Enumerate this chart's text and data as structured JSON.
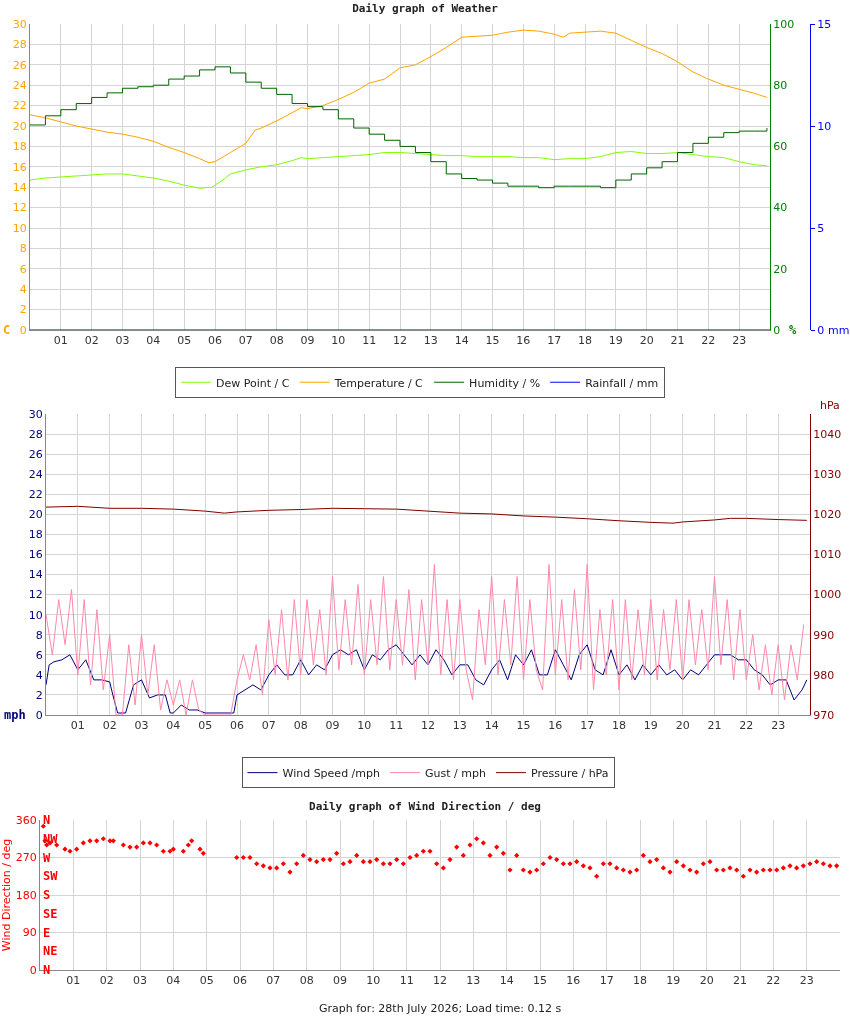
{
  "chart_data": [
    {
      "type": "line",
      "title": "Daily graph of Weather",
      "ylabel": "C",
      "y2label": "%",
      "y3label": "mm",
      "legend": "bottom",
      "grid": true,
      "xlim": [
        0,
        24
      ],
      "xticks": [
        {
          "value": 1,
          "label": "01"
        },
        {
          "value": 2,
          "label": "02"
        },
        {
          "value": 3,
          "label": "03"
        },
        {
          "value": 4,
          "label": "04"
        },
        {
          "value": 5,
          "label": "05"
        },
        {
          "value": 6,
          "label": "06"
        },
        {
          "value": 7,
          "label": "07"
        },
        {
          "value": 8,
          "label": "08"
        },
        {
          "value": 9,
          "label": "09"
        },
        {
          "value": 10,
          "label": "10"
        },
        {
          "value": 11,
          "label": "11"
        },
        {
          "value": 12,
          "label": "12"
        },
        {
          "value": 13,
          "label": "13"
        },
        {
          "value": 14,
          "label": "14"
        },
        {
          "value": 15,
          "label": "15"
        },
        {
          "value": 16,
          "label": "16"
        },
        {
          "value": 17,
          "label": "17"
        },
        {
          "value": 18,
          "label": "18"
        },
        {
          "value": 19,
          "label": "19"
        },
        {
          "value": 20,
          "label": "20"
        },
        {
          "value": 21,
          "label": "21"
        },
        {
          "value": 22,
          "label": "22"
        },
        {
          "value": 23,
          "label": "23"
        }
      ],
      "ylim": [
        0,
        30
      ],
      "yticks": [
        0,
        2,
        4,
        6,
        8,
        10,
        12,
        14,
        16,
        18,
        20,
        22,
        24,
        26,
        28,
        30
      ],
      "y2lim": [
        0,
        100
      ],
      "y2ticks": [
        0,
        20,
        40,
        60,
        80,
        100
      ],
      "y3lim": [
        0,
        15
      ],
      "y3ticks": [
        0,
        5,
        10,
        15
      ],
      "series": [
        {
          "name": "Dew Point / C",
          "color": "#80ff00",
          "x": [
            0,
            0.5,
            1,
            1.5,
            2,
            2.5,
            3,
            3.5,
            4,
            4.5,
            5,
            5.5,
            5.9,
            6.3,
            6.5,
            7,
            7.5,
            8,
            8.5,
            8.8,
            9,
            9.5,
            10,
            10.5,
            11,
            11.5,
            12,
            12.5,
            13,
            13.5,
            14,
            14.5,
            15,
            15.5,
            16,
            16.5,
            17,
            17.5,
            18,
            18.5,
            19,
            19.5,
            20,
            20.5,
            21,
            21.5,
            22,
            22.5,
            23,
            23.5,
            23.9
          ],
          "values": [
            14.7,
            14.9,
            15.0,
            15.1,
            15.2,
            15.3,
            15.3,
            15.1,
            14.9,
            14.6,
            14.2,
            13.9,
            14.0,
            14.8,
            15.3,
            15.7,
            16.0,
            16.2,
            16.6,
            16.9,
            16.8,
            16.9,
            17.0,
            17.1,
            17.2,
            17.4,
            17.4,
            17.3,
            17.2,
            17.1,
            17.1,
            17.0,
            17.0,
            17.0,
            16.9,
            16.9,
            16.7,
            16.8,
            16.8,
            17.0,
            17.4,
            17.5,
            17.3,
            17.3,
            17.4,
            17.2,
            17.0,
            16.9,
            16.5,
            16.2,
            16.1
          ]
        },
        {
          "name": "Temperature / C",
          "color": "#ffa500",
          "x": [
            0,
            0.5,
            1,
            1.5,
            2,
            2.5,
            3,
            3.5,
            4,
            4.5,
            5,
            5.5,
            5.8,
            6,
            6.5,
            7,
            7.3,
            7.5,
            8,
            8.5,
            8.8,
            9,
            9.5,
            10,
            10.5,
            11,
            11.5,
            12,
            12.5,
            13,
            13.5,
            14,
            14.5,
            15,
            15.5,
            16,
            16.5,
            17,
            17.3,
            17.5,
            18,
            18.5,
            19,
            19.5,
            20,
            20.5,
            21,
            21.5,
            22,
            22.5,
            23,
            23.5,
            23.9
          ],
          "values": [
            21.1,
            20.8,
            20.4,
            20.0,
            19.7,
            19.4,
            19.2,
            18.9,
            18.5,
            17.9,
            17.4,
            16.8,
            16.4,
            16.5,
            17.4,
            18.3,
            19.6,
            19.8,
            20.5,
            21.3,
            21.8,
            21.7,
            22.0,
            22.6,
            23.3,
            24.2,
            24.6,
            25.7,
            26.0,
            26.8,
            27.7,
            28.7,
            28.8,
            28.9,
            29.2,
            29.4,
            29.3,
            29.0,
            28.7,
            29.1,
            29.2,
            29.3,
            29.1,
            28.4,
            27.7,
            27.1,
            26.3,
            25.3,
            24.6,
            24.0,
            23.6,
            23.2,
            22.8
          ]
        },
        {
          "name": "Humidity / %",
          "color": "#006400",
          "type": "step",
          "axis": "y2",
          "x": [
            0,
            0.5,
            1,
            1.5,
            2,
            2.5,
            3,
            3.5,
            4,
            4.5,
            5,
            5.5,
            6,
            6.5,
            7,
            7.5,
            8,
            8.5,
            9,
            9.5,
            10,
            10.5,
            11,
            11.5,
            12,
            12.5,
            13,
            13.5,
            14,
            14.5,
            15,
            15.5,
            16,
            16.5,
            17,
            17.5,
            18,
            18.5,
            19,
            19.5,
            20,
            20.5,
            21,
            21.5,
            22,
            22.5,
            23,
            23.5,
            23.9
          ],
          "values": [
            67,
            70,
            72,
            74,
            76,
            77.5,
            79,
            79.5,
            80,
            82,
            83,
            85,
            86,
            84,
            81,
            79,
            77,
            74,
            73,
            72,
            69,
            66,
            64,
            62,
            60,
            58,
            55,
            51,
            49.5,
            49,
            48,
            47,
            47,
            46.5,
            47,
            47,
            47,
            46.5,
            49,
            51,
            53,
            55,
            58,
            61,
            63,
            64.5,
            65,
            65,
            66
          ]
        },
        {
          "name": "Rainfall / mm",
          "color": "#0000ff",
          "axis": "y3",
          "x": [
            0,
            24
          ],
          "values": [
            0,
            0
          ]
        }
      ]
    },
    {
      "type": "line",
      "ylabel": "mph",
      "y2label": "hPa",
      "legend": "bottom",
      "grid": true,
      "xlim": [
        0,
        24
      ],
      "xticks": [
        {
          "value": 1,
          "label": "01"
        },
        {
          "value": 2,
          "label": "02"
        },
        {
          "value": 3,
          "label": "03"
        },
        {
          "value": 4,
          "label": "04"
        },
        {
          "value": 5,
          "label": "05"
        },
        {
          "value": 6,
          "label": "06"
        },
        {
          "value": 7,
          "label": "07"
        },
        {
          "value": 8,
          "label": "08"
        },
        {
          "value": 9,
          "label": "09"
        },
        {
          "value": 10,
          "label": "10"
        },
        {
          "value": 11,
          "label": "11"
        },
        {
          "value": 12,
          "label": "12"
        },
        {
          "value": 13,
          "label": "13"
        },
        {
          "value": 14,
          "label": "14"
        },
        {
          "value": 15,
          "label": "15"
        },
        {
          "value": 16,
          "label": "16"
        },
        {
          "value": 17,
          "label": "17"
        },
        {
          "value": 18,
          "label": "18"
        },
        {
          "value": 19,
          "label": "19"
        },
        {
          "value": 20,
          "label": "20"
        },
        {
          "value": 21,
          "label": "21"
        },
        {
          "value": 22,
          "label": "22"
        },
        {
          "value": 23,
          "label": "23"
        }
      ],
      "ylim": [
        0,
        30
      ],
      "yticks": [
        0,
        2,
        4,
        6,
        8,
        10,
        12,
        14,
        16,
        18,
        20,
        22,
        24,
        26,
        28,
        30
      ],
      "y2lim": [
        970,
        1045
      ],
      "y2ticks": [
        970,
        980,
        990,
        1000,
        1010,
        1020,
        1030,
        1040
      ],
      "series": [
        {
          "name": "Wind Speed /mph",
          "color": "#000080",
          "x": [
            0,
            0.1,
            0.25,
            0.5,
            0.75,
            1,
            1.25,
            1.5,
            1.75,
            2,
            2.1,
            2.25,
            2.5,
            2.75,
            3,
            3.25,
            3.5,
            3.75,
            3.9,
            4,
            4.25,
            4.5,
            4.75,
            5,
            5.5,
            5.9,
            6,
            6.25,
            6.5,
            6.75,
            7,
            7.25,
            7.5,
            7.75,
            8,
            8.25,
            8.5,
            8.75,
            9,
            9.25,
            9.5,
            9.75,
            10,
            10.25,
            10.5,
            10.75,
            11,
            11.25,
            11.5,
            11.75,
            12,
            12.25,
            12.5,
            12.75,
            13,
            13.25,
            13.5,
            13.75,
            14,
            14.25,
            14.5,
            14.75,
            15,
            15.25,
            15.5,
            15.75,
            16,
            16.25,
            16.5,
            16.75,
            17,
            17.25,
            17.5,
            17.75,
            18,
            18.25,
            18.5,
            18.75,
            19,
            19.25,
            19.5,
            19.75,
            20,
            20.25,
            20.5,
            20.75,
            21,
            21.25,
            21.5,
            21.75,
            22,
            22.25,
            22.5,
            22.75,
            23,
            23.25,
            23.5,
            23.75,
            23.9
          ],
          "values": [
            3,
            5,
            5.3,
            5.5,
            6,
            4.5,
            5.5,
            3.5,
            3.5,
            3.3,
            2,
            0.2,
            0.2,
            3,
            3.5,
            1.7,
            2,
            2,
            0.2,
            0.2,
            1,
            0.5,
            0.5,
            0.2,
            0.2,
            0.2,
            2,
            2.5,
            3,
            2.5,
            4,
            5,
            4,
            4,
            5.5,
            4,
            5,
            4.5,
            6,
            6.5,
            6,
            6.5,
            4.5,
            6,
            5.5,
            6.5,
            7,
            6,
            5,
            6,
            5,
            6.5,
            5.5,
            4,
            5,
            5,
            3.5,
            3,
            4.5,
            5.5,
            3.5,
            6,
            5,
            6.5,
            4,
            4,
            6.5,
            5,
            3.5,
            6,
            7,
            4.5,
            4,
            6.5,
            4,
            5,
            3.5,
            5,
            4,
            5,
            4,
            4.5,
            3.5,
            4.5,
            4,
            5,
            6,
            6,
            6,
            5.5,
            5.5,
            4.5,
            4,
            3,
            3.5,
            3.5,
            1.5,
            2.5,
            3.5
          ]
        },
        {
          "name": "Gust / mph",
          "color": "#ff88aa",
          "x": [
            0,
            0.2,
            0.4,
            0.6,
            0.8,
            1,
            1.2,
            1.4,
            1.6,
            1.8,
            2,
            2.2,
            2.4,
            2.6,
            2.8,
            3,
            3.2,
            3.4,
            3.6,
            3.8,
            4,
            4.2,
            4.4,
            4.6,
            4.8,
            5,
            5.2,
            5.4,
            5.6,
            5.8,
            6,
            6.2,
            6.4,
            6.6,
            6.8,
            7,
            7.2,
            7.4,
            7.6,
            7.8,
            8,
            8.2,
            8.4,
            8.6,
            8.8,
            9,
            9.2,
            9.4,
            9.6,
            9.8,
            10,
            10.2,
            10.4,
            10.6,
            10.8,
            11,
            11.2,
            11.4,
            11.6,
            11.8,
            12,
            12.2,
            12.4,
            12.6,
            12.8,
            13,
            13.2,
            13.4,
            13.6,
            13.8,
            14,
            14.2,
            14.4,
            14.6,
            14.8,
            15,
            15.2,
            15.4,
            15.6,
            15.8,
            16,
            16.2,
            16.4,
            16.6,
            16.8,
            17,
            17.2,
            17.4,
            17.6,
            17.8,
            18,
            18.2,
            18.4,
            18.6,
            18.8,
            19,
            19.2,
            19.4,
            19.6,
            19.8,
            20,
            20.2,
            20.4,
            20.6,
            20.8,
            21,
            21.2,
            21.4,
            21.6,
            21.8,
            22,
            22.2,
            22.4,
            22.6,
            22.8,
            23,
            23.2,
            23.4,
            23.6,
            23.8
          ],
          "values": [
            10,
            6,
            11.5,
            7,
            12.5,
            4,
            11.5,
            3,
            10.5,
            2.5,
            8,
            0,
            0,
            7,
            1,
            8,
            2,
            7,
            0.5,
            3.5,
            1,
            3.5,
            0,
            3.5,
            0.5,
            0,
            0,
            0,
            0,
            0,
            3.5,
            6,
            3.5,
            7,
            2,
            9.5,
            4,
            10.5,
            3.5,
            11.5,
            4,
            11.5,
            5,
            10.5,
            4,
            13.8,
            4.5,
            11.5,
            5,
            13,
            4,
            11.5,
            5,
            13.8,
            4.5,
            11.5,
            5,
            12.5,
            3.5,
            11.5,
            5,
            15,
            4,
            11.5,
            3.5,
            11.5,
            4.5,
            1.5,
            10.5,
            5,
            13.8,
            4,
            11.5,
            5,
            13.8,
            3.5,
            11.5,
            4.5,
            2.5,
            15,
            4,
            11.5,
            3.5,
            12.5,
            4.5,
            15,
            2.5,
            10.5,
            4,
            11.5,
            2.5,
            11.5,
            3.5,
            10.5,
            4,
            11.5,
            3.5,
            10.5,
            4.5,
            11.5,
            3.5,
            11.5,
            5,
            10.5,
            4.5,
            13.8,
            5,
            11.5,
            3.5,
            10.5,
            3.5,
            8,
            2.5,
            7,
            2,
            7,
            1.5,
            7,
            3.5,
            9
          ]
        },
        {
          "name": "Pressure / hPa",
          "color": "#800000",
          "axis": "y2",
          "x": [
            0,
            1,
            2,
            3,
            4,
            5,
            5.6,
            6,
            7,
            8,
            9,
            10,
            11,
            12,
            13,
            14,
            15,
            16,
            17,
            18,
            19,
            19.7,
            20,
            21,
            21.5,
            22,
            23,
            23.9
          ],
          "values": [
            1021.8,
            1022.0,
            1021.5,
            1021.5,
            1021.3,
            1020.8,
            1020.3,
            1020.6,
            1021,
            1021.2,
            1021.5,
            1021.4,
            1021.3,
            1020.8,
            1020.3,
            1020.1,
            1019.6,
            1019.3,
            1018.9,
            1018.4,
            1018,
            1017.8,
            1018.1,
            1018.6,
            1019,
            1019,
            1018.7,
            1018.5
          ]
        }
      ]
    },
    {
      "type": "scatter",
      "title": "Daily graph of Wind Direction / deg",
      "ylabel": "Wind Direction / deg",
      "grid": true,
      "marker": "diamond",
      "xlim": [
        0,
        24
      ],
      "xticks": [
        {
          "value": 1,
          "label": "01"
        },
        {
          "value": 2,
          "label": "02"
        },
        {
          "value": 3,
          "label": "03"
        },
        {
          "value": 4,
          "label": "04"
        },
        {
          "value": 5,
          "label": "05"
        },
        {
          "value": 6,
          "label": "06"
        },
        {
          "value": 7,
          "label": "07"
        },
        {
          "value": 8,
          "label": "08"
        },
        {
          "value": 9,
          "label": "09"
        },
        {
          "value": 10,
          "label": "10"
        },
        {
          "value": 11,
          "label": "11"
        },
        {
          "value": 12,
          "label": "12"
        },
        {
          "value": 13,
          "label": "13"
        },
        {
          "value": 14,
          "label": "14"
        },
        {
          "value": 15,
          "label": "15"
        },
        {
          "value": 16,
          "label": "16"
        },
        {
          "value": 17,
          "label": "17"
        },
        {
          "value": 18,
          "label": "18"
        },
        {
          "value": 19,
          "label": "19"
        },
        {
          "value": 20,
          "label": "20"
        },
        {
          "value": 21,
          "label": "21"
        },
        {
          "value": 22,
          "label": "22"
        },
        {
          "value": 23,
          "label": "23"
        }
      ],
      "ylim": [
        0,
        360
      ],
      "yticks": [
        0,
        90,
        180,
        270,
        360
      ],
      "annotations": [
        "Graph for: 28th July 2026; Load time: 0.12 s",
        "N",
        "NE",
        "E",
        "SE",
        "S",
        "SW",
        "W",
        "NW",
        "N"
      ],
      "series": [
        {
          "color": "#ff0000",
          "x": [
            0.1,
            0.15,
            0.2,
            0.3,
            0.5,
            0.75,
            0.9,
            1.1,
            1.3,
            1.5,
            1.7,
            1.9,
            2.1,
            2.2,
            2.5,
            2.7,
            2.9,
            3.1,
            3.3,
            3.5,
            3.7,
            3.9,
            4.0,
            4.3,
            4.45,
            4.55,
            4.8,
            4.9,
            5.9,
            6.1,
            6.3,
            6.5,
            6.7,
            6.9,
            7.1,
            7.3,
            7.5,
            7.7,
            7.9,
            8.1,
            8.3,
            8.5,
            8.7,
            8.9,
            9.1,
            9.3,
            9.5,
            9.7,
            9.9,
            10.1,
            10.3,
            10.5,
            10.7,
            10.9,
            11.1,
            11.3,
            11.5,
            11.7,
            11.9,
            12.1,
            12.3,
            12.5,
            12.7,
            12.9,
            13.1,
            13.3,
            13.5,
            13.7,
            13.9,
            14.1,
            14.3,
            14.5,
            14.7,
            14.9,
            15.1,
            15.3,
            15.5,
            15.7,
            15.9,
            16.1,
            16.3,
            16.5,
            16.7,
            16.9,
            17.1,
            17.3,
            17.5,
            17.7,
            17.9,
            18.1,
            18.3,
            18.5,
            18.7,
            18.9,
            19.1,
            19.3,
            19.5,
            19.7,
            19.9,
            20.1,
            20.3,
            20.5,
            20.7,
            20.9,
            21.1,
            21.3,
            21.5,
            21.7,
            21.9,
            22.1,
            22.3,
            22.5,
            22.7,
            22.9,
            23.1,
            23.3,
            23.5,
            23.7,
            23.9
          ],
          "values": [
            345,
            310,
            300,
            305,
            300,
            290,
            285,
            290,
            305,
            310,
            310,
            315,
            310,
            310,
            300,
            295,
            295,
            305,
            305,
            300,
            285,
            285,
            290,
            285,
            300,
            310,
            290,
            280,
            270,
            270,
            270,
            255,
            250,
            245,
            245,
            255,
            235,
            255,
            275,
            265,
            260,
            265,
            265,
            280,
            255,
            260,
            275,
            260,
            260,
            265,
            255,
            255,
            265,
            255,
            270,
            275,
            285,
            285,
            255,
            245,
            265,
            295,
            275,
            300,
            315,
            305,
            275,
            295,
            280,
            240,
            275,
            240,
            235,
            240,
            255,
            270,
            265,
            255,
            255,
            260,
            250,
            245,
            225,
            255,
            255,
            245,
            240,
            235,
            240,
            275,
            260,
            265,
            245,
            235,
            260,
            250,
            240,
            235,
            255,
            260,
            240,
            240,
            245,
            240,
            225,
            240,
            235,
            240,
            240,
            240,
            245,
            250,
            245,
            250,
            255,
            260,
            255,
            250,
            250
          ]
        }
      ]
    }
  ]
}
